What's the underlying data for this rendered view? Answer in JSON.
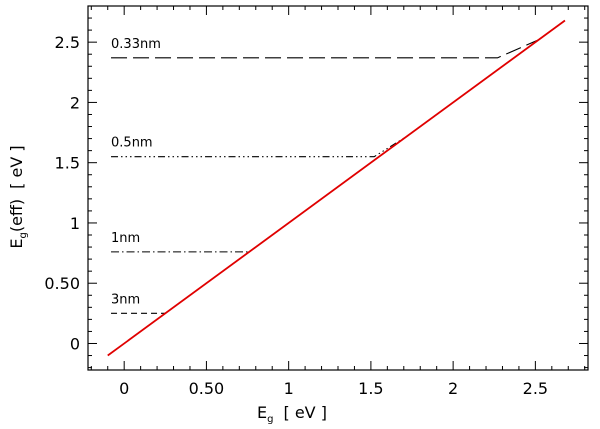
{
  "chart_data": {
    "type": "line",
    "xlabel": "E",
    "xlabel_sub": "g",
    "xlabel_unit": "[ eV ]",
    "ylabel": "E",
    "ylabel_sub": "g",
    "ylabel_mid": "(eff)",
    "ylabel_unit": "[ eV ]",
    "xlim": [
      -0.22,
      2.82
    ],
    "ylim": [
      -0.22,
      2.8
    ],
    "x_ticks": [
      {
        "value": 0,
        "label": "0"
      },
      {
        "value": 0.5,
        "label": "0.50"
      },
      {
        "value": 1,
        "label": "1"
      },
      {
        "value": 1.5,
        "label": "1.5"
      },
      {
        "value": 2,
        "label": "2"
      },
      {
        "value": 2.5,
        "label": "2.5"
      }
    ],
    "y_ticks": [
      {
        "value": 0,
        "label": "0"
      },
      {
        "value": 0.5,
        "label": "0.50"
      },
      {
        "value": 1,
        "label": "1"
      },
      {
        "value": 1.5,
        "label": "1.5"
      },
      {
        "value": 2,
        "label": "2"
      },
      {
        "value": 2.5,
        "label": "2.5"
      }
    ],
    "grid": false,
    "reference_line": {
      "color": "#e00000",
      "x": [
        -0.1,
        2.68
      ],
      "y": [
        -0.1,
        2.68
      ]
    },
    "series": [
      {
        "name": "0.33nm",
        "style": "long-dash",
        "x": [
          -0.08,
          2.27,
          2.52
        ],
        "y": [
          2.37,
          2.37,
          2.52
        ]
      },
      {
        "name": "0.5nm",
        "style": "dash-dot-dot-dot",
        "x": [
          -0.08,
          1.52,
          1.72
        ],
        "y": [
          1.55,
          1.55,
          1.72
        ]
      },
      {
        "name": "1nm",
        "style": "dash-dot",
        "x": [
          -0.08,
          0.76,
          0.85
        ],
        "y": [
          0.76,
          0.76,
          0.85
        ]
      },
      {
        "name": "3nm",
        "style": "dash",
        "x": [
          -0.08,
          0.25
        ],
        "y": [
          0.25,
          0.25
        ]
      }
    ]
  }
}
